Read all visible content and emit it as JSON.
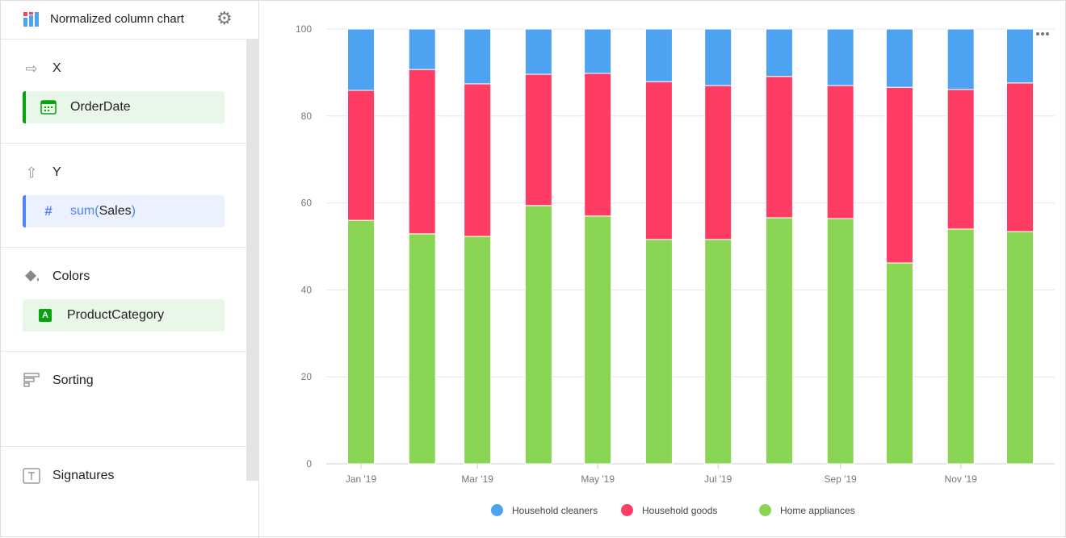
{
  "header": {
    "title": "Normalized column chart",
    "settings_icon": "gear-icon"
  },
  "sections": {
    "x": {
      "label": "X",
      "field": "OrderDate"
    },
    "y": {
      "label": "Y",
      "field_func": "sum(",
      "field_name": "Sales",
      "field_close": ")"
    },
    "colors": {
      "label": "Colors",
      "field": "ProductCategory",
      "badge": "A"
    },
    "sorting": {
      "label": "Sorting"
    },
    "signatures": {
      "label": "Signatures"
    }
  },
  "chart_data": {
    "type": "bar",
    "stacked": "percent",
    "x": [
      "2019-01-01",
      "2019-02-01",
      "2019-03-01",
      "2019-04-01",
      "2019-05-01",
      "2019-06-01",
      "2019-07-01",
      "2019-08-01",
      "2019-09-01",
      "2019-10-01",
      "2019-11-01",
      "2019-12-01"
    ],
    "x_tick_labels": [
      "Jan '19",
      "Mar '19",
      "May '19",
      "Jul '19",
      "Sep '19",
      "Nov '19"
    ],
    "ylim": [
      0,
      100
    ],
    "y_ticks": [
      0,
      20,
      40,
      60,
      80,
      100
    ],
    "grid": true,
    "legend": "bottom",
    "series": [
      {
        "name": "Home appliances",
        "color": "#8ad554",
        "values": [
          56.0,
          52.9,
          52.3,
          59.4,
          57.0,
          51.6,
          51.6,
          56.6,
          56.4,
          46.2,
          54.0,
          53.4
        ]
      },
      {
        "name": "Household goods",
        "color": "#ff3d64",
        "values": [
          29.9,
          37.8,
          35.1,
          30.2,
          32.8,
          36.3,
          35.4,
          32.5,
          30.6,
          40.4,
          32.1,
          34.2
        ]
      },
      {
        "name": "Household cleaners",
        "color": "#4da2f1",
        "values": [
          14.1,
          9.3,
          12.6,
          10.4,
          10.2,
          12.1,
          13.0,
          10.9,
          13.0,
          13.4,
          13.9,
          12.4
        ]
      }
    ],
    "legend_order": [
      "Household cleaners",
      "Household goods",
      "Home appliances"
    ]
  }
}
